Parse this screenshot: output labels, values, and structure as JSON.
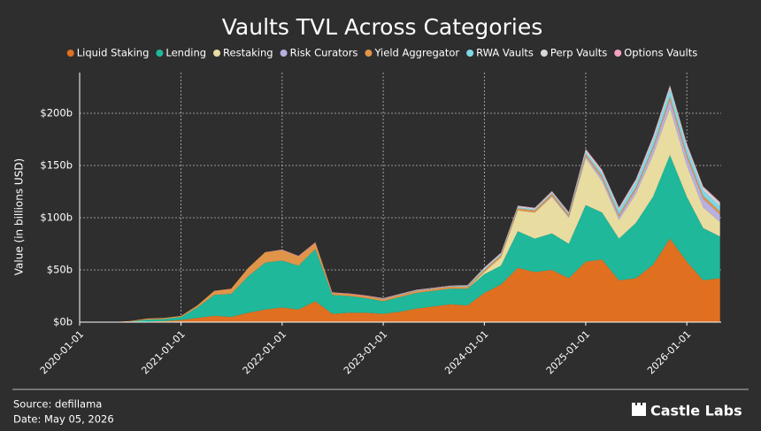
{
  "chart_data": {
    "type": "stacked-area",
    "title": "Vaults TVL Across Categories",
    "y_label": "Value (in billions USD)",
    "source": "Source: defillama",
    "date_note": "Date: May 05, 2026",
    "logo": "Castle Labs",
    "x": [
      "2020-01-01",
      "2020-03-01",
      "2020-05-01",
      "2020-07-01",
      "2020-09-01",
      "2020-11-01",
      "2021-01-01",
      "2021-03-01",
      "2021-05-01",
      "2021-07-01",
      "2021-09-01",
      "2021-11-01",
      "2022-01-01",
      "2022-03-01",
      "2022-05-01",
      "2022-07-01",
      "2022-09-01",
      "2022-11-01",
      "2023-01-01",
      "2023-03-01",
      "2023-05-01",
      "2023-07-01",
      "2023-09-01",
      "2023-11-01",
      "2024-01-01",
      "2024-03-01",
      "2024-05-01",
      "2024-07-01",
      "2024-09-01",
      "2024-11-01",
      "2025-01-01",
      "2025-03-01",
      "2025-05-01",
      "2025-07-01",
      "2025-09-01",
      "2025-11-01",
      "2026-01-01",
      "2026-03-01",
      "2026-05-01"
    ],
    "series": [
      {
        "name": "Liquid Staking",
        "color": "#e07020",
        "values": [
          0,
          0,
          0,
          0,
          0.5,
          1,
          2,
          4,
          6,
          5,
          9,
          12,
          14,
          12,
          20,
          8,
          9,
          9,
          8,
          10,
          13,
          15,
          17,
          16,
          28,
          36,
          52,
          48,
          50,
          42,
          58,
          60,
          40,
          42,
          55,
          80,
          58,
          40,
          42
        ]
      },
      {
        "name": "Lending",
        "color": "#1fb89a",
        "values": [
          0,
          0,
          0,
          0.5,
          2,
          2,
          3,
          10,
          20,
          22,
          35,
          45,
          45,
          42,
          50,
          18,
          16,
          14,
          12,
          14,
          15,
          15,
          15,
          16,
          18,
          18,
          35,
          32,
          35,
          33,
          54,
          45,
          40,
          53,
          65,
          80,
          62,
          50,
          40
        ]
      },
      {
        "name": "Restaking",
        "color": "#e8dca0",
        "values": [
          0,
          0,
          0,
          0,
          0,
          0,
          0,
          0,
          0,
          0,
          0,
          0,
          0,
          0,
          0,
          0,
          0,
          0,
          0,
          0,
          0,
          0,
          0,
          0,
          2,
          8,
          20,
          25,
          35,
          25,
          45,
          30,
          18,
          28,
          40,
          45,
          30,
          20,
          14
        ]
      },
      {
        "name": "Risk Curators",
        "color": "#b8b0e0",
        "values": [
          0,
          0,
          0,
          0,
          0,
          0,
          0,
          0,
          0,
          0,
          0,
          0,
          0,
          0,
          0,
          0,
          0,
          0,
          0,
          0,
          0,
          0,
          0,
          0,
          0,
          0,
          0,
          0,
          1,
          1,
          2,
          3,
          3,
          4,
          6,
          8,
          8,
          8,
          7
        ]
      },
      {
        "name": "Yield Aggregator",
        "color": "#e0944a",
        "values": [
          0,
          0,
          0,
          0.5,
          1,
          1,
          1,
          2,
          4,
          5,
          8,
          10,
          10,
          9,
          6,
          2,
          2,
          2,
          2,
          2,
          2,
          2,
          2,
          2,
          2,
          2,
          2,
          2,
          2,
          2,
          2,
          2,
          2,
          2,
          2,
          3,
          3,
          3,
          3
        ]
      },
      {
        "name": "RWA Vaults",
        "color": "#7fd8e8",
        "values": [
          0,
          0,
          0,
          0,
          0,
          0,
          0,
          0,
          0,
          0,
          0,
          0,
          0,
          0,
          0,
          0,
          0,
          0,
          0.5,
          0.5,
          0.5,
          0.5,
          0.5,
          1,
          1,
          1,
          1,
          1,
          1,
          1,
          2,
          3,
          4,
          5,
          6,
          7,
          6,
          5,
          5
        ]
      },
      {
        "name": "Perp Vaults",
        "color": "#d8d8d8",
        "values": [
          0,
          0,
          0,
          0,
          0,
          0,
          0,
          0,
          0,
          0,
          0,
          0,
          0,
          0,
          0,
          0,
          0,
          0,
          0,
          0,
          0,
          0,
          0,
          0,
          1,
          1,
          1,
          1,
          1,
          1,
          2,
          2,
          2,
          2,
          3,
          3,
          3,
          3,
          3
        ]
      },
      {
        "name": "Options Vaults",
        "color": "#f4a0c0",
        "values": [
          0,
          0,
          0,
          0,
          0,
          0,
          0,
          0,
          0,
          0,
          0,
          0,
          0.5,
          0.5,
          0.5,
          0.5,
          0.5,
          0.5,
          0.5,
          0.5,
          0.5,
          0.5,
          0.5,
          0.5,
          0.5,
          0.5,
          0.5,
          0.5,
          0.5,
          0.5,
          1,
          1,
          1,
          1,
          1,
          1,
          1,
          1,
          1
        ]
      }
    ],
    "xlim": [
      "2020-01-01",
      "2026-05-05"
    ],
    "xticks": [
      "2020-01-01",
      "2021-01-01",
      "2022-01-01",
      "2023-01-01",
      "2024-01-01",
      "2025-01-01",
      "2026-01-01"
    ],
    "ylim": [
      0,
      239
    ],
    "yticks": [
      {
        "value": 0,
        "label": "$0b"
      },
      {
        "value": 50,
        "label": "$50b"
      },
      {
        "value": 100,
        "label": "$100b"
      },
      {
        "value": 150,
        "label": "$150b"
      },
      {
        "value": 200,
        "label": "$200b"
      }
    ],
    "grid": true
  }
}
